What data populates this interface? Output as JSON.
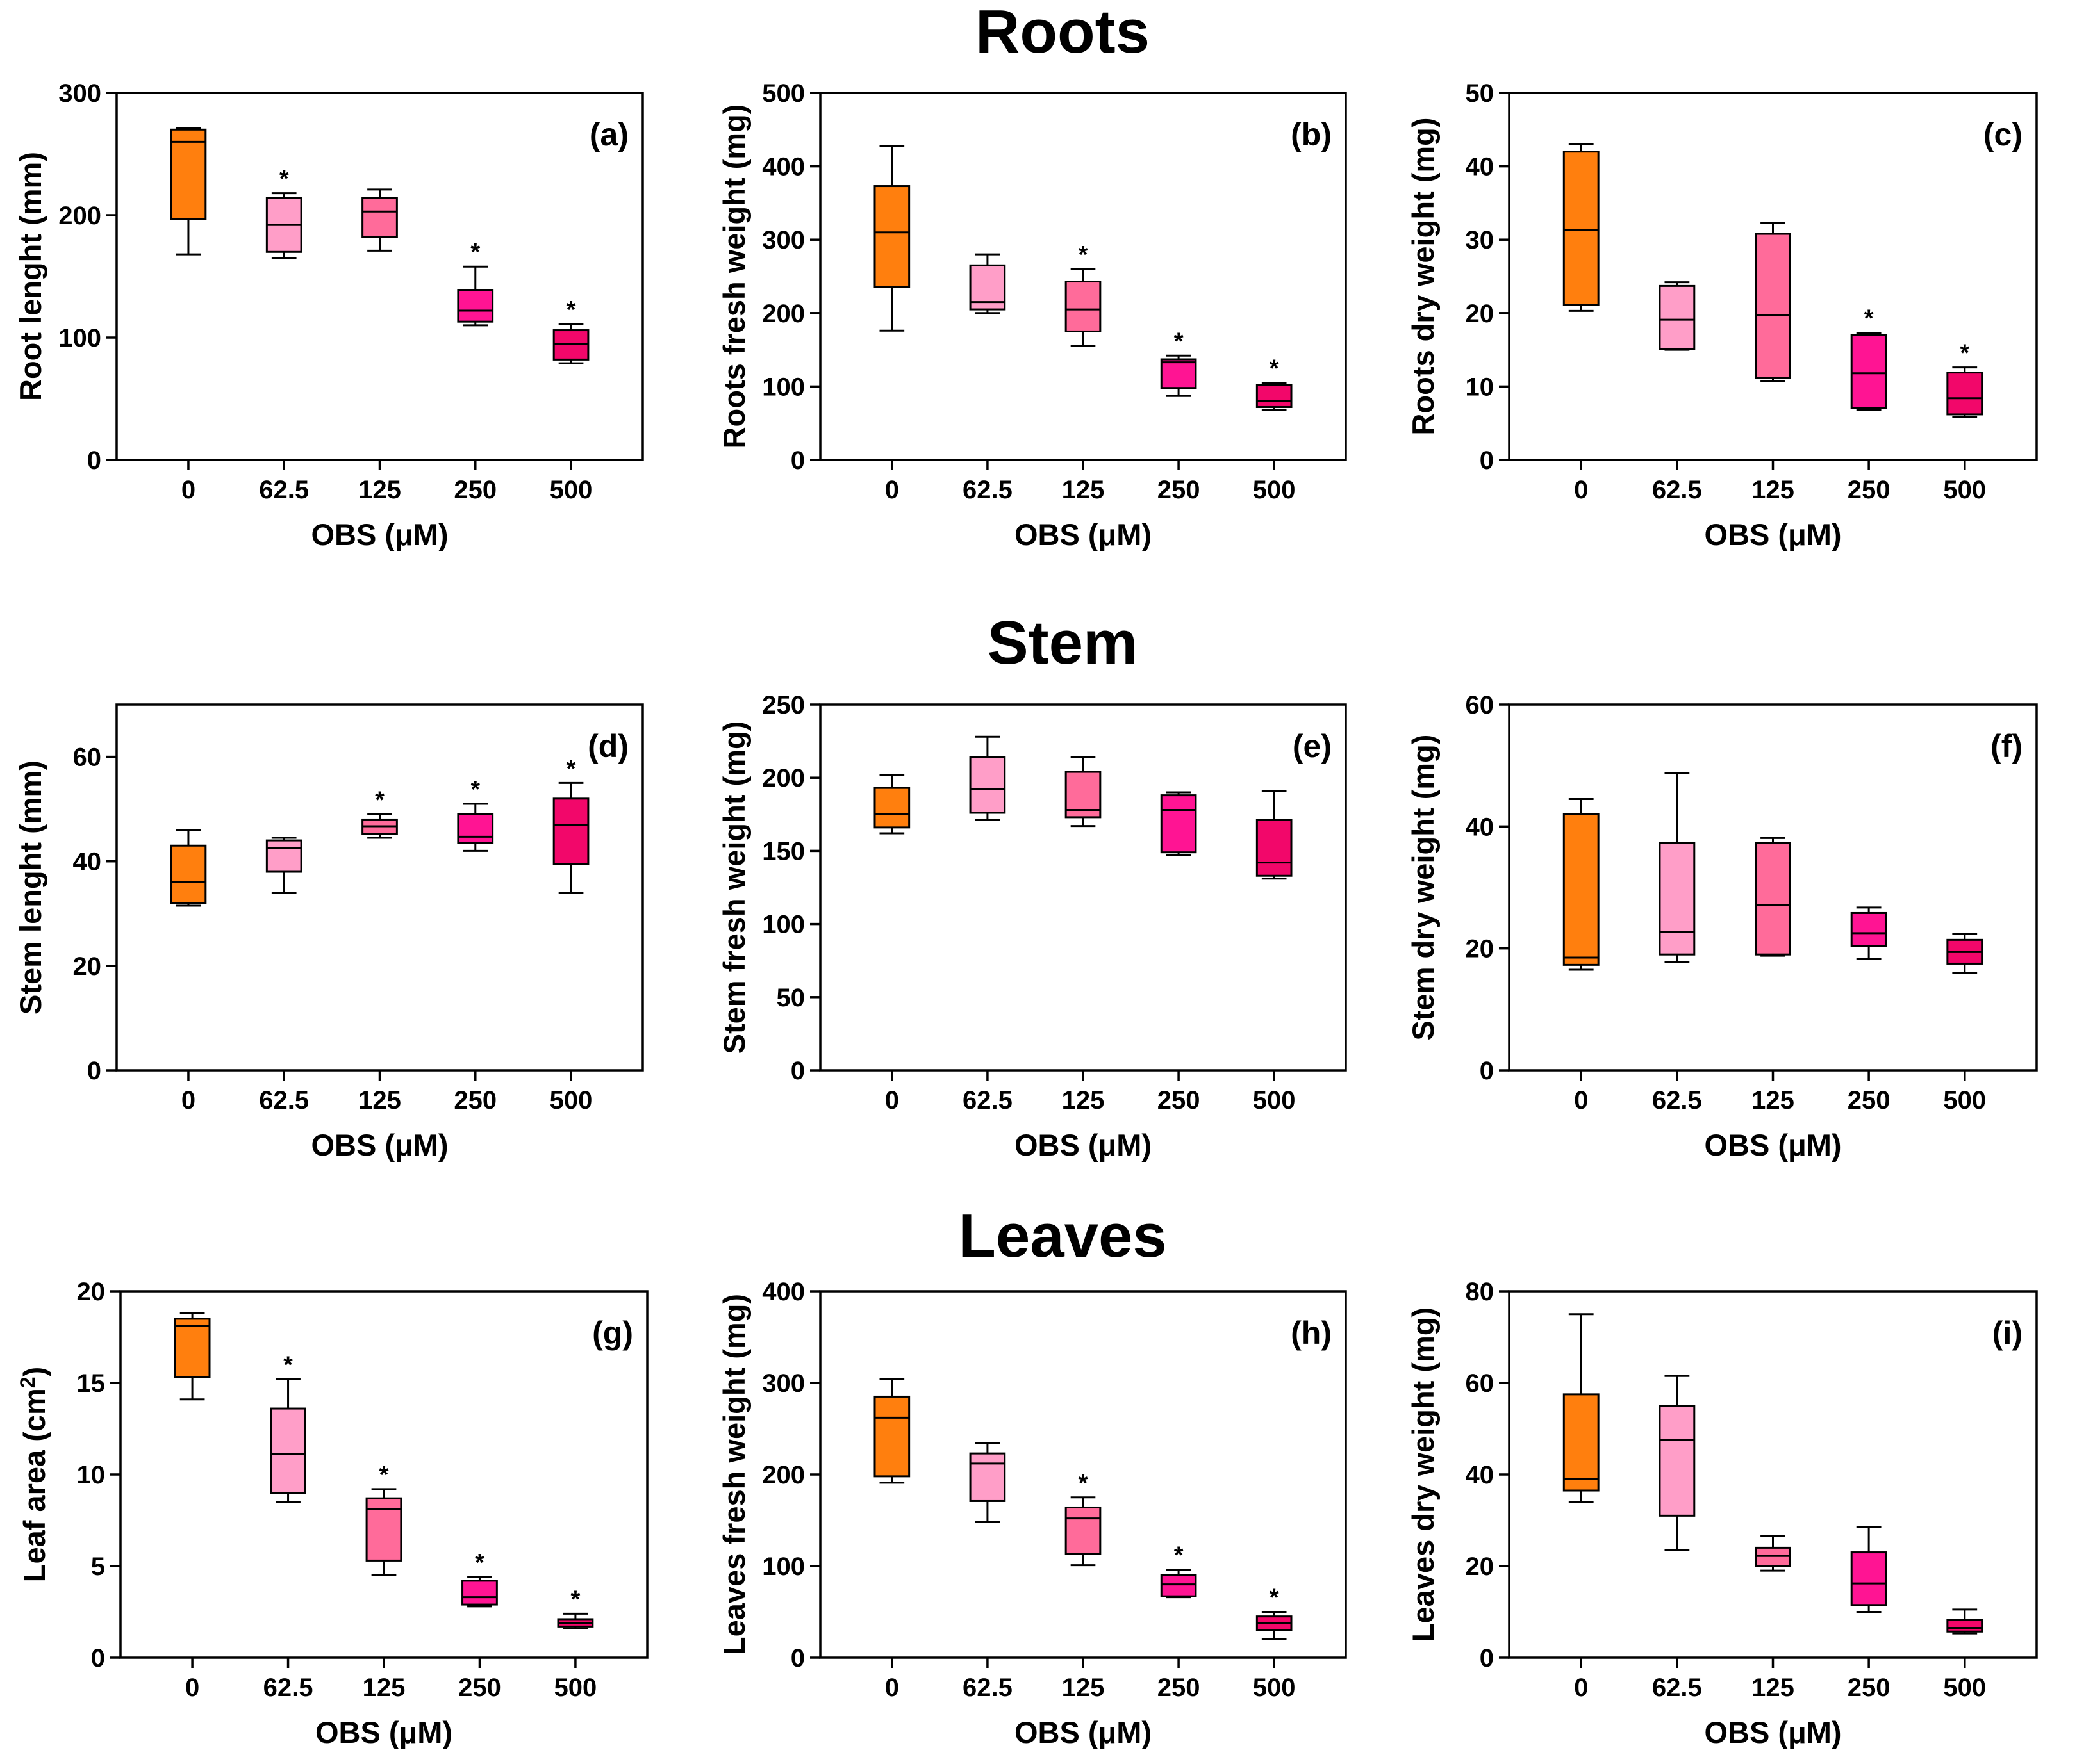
{
  "sections": [
    "Roots",
    "Stem",
    "Leaves"
  ],
  "colors": [
    "#FF7F0E",
    "#FF9EC8",
    "#FF6B9A",
    "#FF1493",
    "#F2076A"
  ],
  "chart_data": [
    {
      "panel": "(a)",
      "type": "box",
      "title": "",
      "xlabel": "OBS (μM)",
      "ylabel": "Root lenght (mm)",
      "ylabel_sup": "",
      "ylim": [
        0,
        300
      ],
      "yticks": [
        0,
        100,
        200,
        300
      ],
      "categories": [
        "0",
        "62.5",
        "125",
        "250",
        "500"
      ],
      "boxes": [
        {
          "min": 168,
          "q1": 197,
          "median": 260,
          "q3": 270,
          "max": 271,
          "sig": false
        },
        {
          "min": 165,
          "q1": 170,
          "median": 192,
          "q3": 214,
          "max": 218,
          "sig": true
        },
        {
          "min": 171,
          "q1": 182,
          "median": 203,
          "q3": 214,
          "max": 221,
          "sig": false
        },
        {
          "min": 110,
          "q1": 113,
          "median": 122,
          "q3": 139,
          "max": 158,
          "sig": true
        },
        {
          "min": 79,
          "q1": 82,
          "median": 95,
          "q3": 106,
          "max": 111,
          "sig": true
        }
      ]
    },
    {
      "panel": "(b)",
      "type": "box",
      "title": "",
      "xlabel": "OBS (μM)",
      "ylabel": "Roots fresh weight (mg)",
      "ylabel_sup": "",
      "ylim": [
        0,
        500
      ],
      "yticks": [
        0,
        100,
        200,
        300,
        400,
        500
      ],
      "categories": [
        "0",
        "62.5",
        "125",
        "250",
        "500"
      ],
      "boxes": [
        {
          "min": 176,
          "q1": 236,
          "median": 310,
          "q3": 373,
          "max": 428,
          "sig": false
        },
        {
          "min": 200,
          "q1": 205,
          "median": 215,
          "q3": 265,
          "max": 280,
          "sig": false
        },
        {
          "min": 155,
          "q1": 175,
          "median": 205,
          "q3": 243,
          "max": 260,
          "sig": true
        },
        {
          "min": 87,
          "q1": 98,
          "median": 133,
          "q3": 137,
          "max": 142,
          "sig": true
        },
        {
          "min": 68,
          "q1": 72,
          "median": 80,
          "q3": 102,
          "max": 105,
          "sig": true
        }
      ]
    },
    {
      "panel": "(c)",
      "type": "box",
      "title": "",
      "xlabel": "OBS (μM)",
      "ylabel": "Roots dry weight (mg)",
      "ylabel_sup": "",
      "ylim": [
        0,
        50
      ],
      "yticks": [
        0,
        10,
        20,
        30,
        40,
        50
      ],
      "categories": [
        "0",
        "62.5",
        "125",
        "250",
        "500"
      ],
      "boxes": [
        {
          "min": 20.3,
          "q1": 21.1,
          "median": 31.3,
          "q3": 42,
          "max": 43,
          "sig": false
        },
        {
          "min": 15,
          "q1": 15.1,
          "median": 19.1,
          "q3": 23.7,
          "max": 24.2,
          "sig": false
        },
        {
          "min": 10.7,
          "q1": 11.2,
          "median": 19.7,
          "q3": 30.8,
          "max": 32.3,
          "sig": false
        },
        {
          "min": 6.8,
          "q1": 7.1,
          "median": 11.8,
          "q3": 17,
          "max": 17.3,
          "sig": true
        },
        {
          "min": 5.8,
          "q1": 6.2,
          "median": 8.4,
          "q3": 11.9,
          "max": 12.6,
          "sig": true
        }
      ]
    },
    {
      "panel": "(d)",
      "type": "box",
      "title": "",
      "xlabel": "OBS (μM)",
      "ylabel": "Stem lenght (mm)",
      "ylabel_sup": "",
      "ylim": [
        0,
        70
      ],
      "yticks": [
        0,
        20,
        40,
        60
      ],
      "categories": [
        "0",
        "62.5",
        "125",
        "250",
        "500"
      ],
      "boxes": [
        {
          "min": 31.5,
          "q1": 32,
          "median": 36,
          "q3": 43,
          "max": 46,
          "sig": false
        },
        {
          "min": 34,
          "q1": 38,
          "median": 42.5,
          "q3": 44,
          "max": 44.5,
          "sig": false
        },
        {
          "min": 44.5,
          "q1": 45.2,
          "median": 46.7,
          "q3": 48,
          "max": 49,
          "sig": true
        },
        {
          "min": 42,
          "q1": 43.5,
          "median": 44.7,
          "q3": 49,
          "max": 51,
          "sig": true
        },
        {
          "min": 34,
          "q1": 39.5,
          "median": 47,
          "q3": 52,
          "max": 55,
          "sig": true
        }
      ]
    },
    {
      "panel": "(e)",
      "type": "box",
      "title": "",
      "xlabel": "OBS (μM)",
      "ylabel": "Stem fresh weight (mg)",
      "ylabel_sup": "",
      "ylim": [
        0,
        250
      ],
      "yticks": [
        0,
        50,
        100,
        150,
        200,
        250
      ],
      "categories": [
        "0",
        "62.5",
        "125",
        "250",
        "500"
      ],
      "boxes": [
        {
          "min": 162,
          "q1": 166,
          "median": 175,
          "q3": 193,
          "max": 202,
          "sig": false
        },
        {
          "min": 171,
          "q1": 176,
          "median": 192,
          "q3": 214,
          "max": 228,
          "sig": false
        },
        {
          "min": 167,
          "q1": 173,
          "median": 178,
          "q3": 204,
          "max": 214,
          "sig": false
        },
        {
          "min": 147,
          "q1": 149,
          "median": 178,
          "q3": 188,
          "max": 190,
          "sig": false
        },
        {
          "min": 131,
          "q1": 133,
          "median": 142,
          "q3": 171,
          "max": 191,
          "sig": false
        }
      ]
    },
    {
      "panel": "(f)",
      "type": "box",
      "title": "",
      "xlabel": "OBS (μM)",
      "ylabel": "Stem dry weight (mg)",
      "ylabel_sup": "",
      "ylim": [
        0,
        60
      ],
      "yticks": [
        0,
        20,
        40,
        60
      ],
      "categories": [
        "0",
        "62.5",
        "125",
        "250",
        "500"
      ],
      "boxes": [
        {
          "min": 16.5,
          "q1": 17.3,
          "median": 18.5,
          "q3": 42,
          "max": 44.5,
          "sig": false
        },
        {
          "min": 17.7,
          "q1": 19,
          "median": 22.7,
          "q3": 37.3,
          "max": 48.8,
          "sig": false
        },
        {
          "min": 18.8,
          "q1": 19,
          "median": 27.1,
          "q3": 37.3,
          "max": 38.1,
          "sig": false
        },
        {
          "min": 18.3,
          "q1": 20.4,
          "median": 22.5,
          "q3": 25.8,
          "max": 26.7,
          "sig": false
        },
        {
          "min": 16,
          "q1": 17.5,
          "median": 19.4,
          "q3": 21.4,
          "max": 22.4,
          "sig": false
        }
      ]
    },
    {
      "panel": "(g)",
      "type": "box",
      "title": "",
      "xlabel": "OBS (μM)",
      "ylabel": "Leaf area (cm",
      "ylabel_sup": "2",
      "ylim": [
        0,
        20
      ],
      "yticks": [
        0,
        5,
        10,
        15,
        20
      ],
      "categories": [
        "0",
        "62.5",
        "125",
        "250",
        "500"
      ],
      "boxes": [
        {
          "min": 14.1,
          "q1": 15.3,
          "median": 18.1,
          "q3": 18.5,
          "max": 18.8,
          "sig": false
        },
        {
          "min": 8.5,
          "q1": 9,
          "median": 11.1,
          "q3": 13.6,
          "max": 15.2,
          "sig": true
        },
        {
          "min": 4.5,
          "q1": 5.3,
          "median": 8.1,
          "q3": 8.7,
          "max": 9.2,
          "sig": true
        },
        {
          "min": 2.8,
          "q1": 2.9,
          "median": 3.3,
          "q3": 4.2,
          "max": 4.4,
          "sig": true
        },
        {
          "min": 1.6,
          "q1": 1.7,
          "median": 1.9,
          "q3": 2.1,
          "max": 2.4,
          "sig": true
        }
      ]
    },
    {
      "panel": "(h)",
      "type": "box",
      "title": "",
      "xlabel": "OBS (μM)",
      "ylabel": "Leaves fresh weight (mg)",
      "ylabel_sup": "",
      "ylim": [
        0,
        400
      ],
      "yticks": [
        0,
        100,
        200,
        300,
        400
      ],
      "categories": [
        "0",
        "62.5",
        "125",
        "250",
        "500"
      ],
      "boxes": [
        {
          "min": 191,
          "q1": 198,
          "median": 262,
          "q3": 285,
          "max": 304,
          "sig": false
        },
        {
          "min": 148,
          "q1": 171,
          "median": 212,
          "q3": 223,
          "max": 234,
          "sig": false
        },
        {
          "min": 101,
          "q1": 113,
          "median": 152,
          "q3": 164,
          "max": 175,
          "sig": true
        },
        {
          "min": 66,
          "q1": 67,
          "median": 80,
          "q3": 90,
          "max": 96,
          "sig": true
        },
        {
          "min": 20,
          "q1": 30,
          "median": 38,
          "q3": 45,
          "max": 50,
          "sig": true
        }
      ]
    },
    {
      "panel": "(i)",
      "type": "box",
      "title": "",
      "xlabel": "OBS (μM)",
      "ylabel": "Leaves dry weight (mg)",
      "ylabel_sup": "",
      "ylim": [
        0,
        80
      ],
      "yticks": [
        0,
        20,
        40,
        60,
        80
      ],
      "categories": [
        "0",
        "62.5",
        "125",
        "250",
        "500"
      ],
      "boxes": [
        {
          "min": 34,
          "q1": 36.5,
          "median": 39,
          "q3": 57.5,
          "max": 75,
          "sig": false
        },
        {
          "min": 23.5,
          "q1": 31,
          "median": 47.5,
          "q3": 55,
          "max": 61.5,
          "sig": false
        },
        {
          "min": 19,
          "q1": 20,
          "median": 22.2,
          "q3": 24,
          "max": 26.5,
          "sig": false
        },
        {
          "min": 10,
          "q1": 11.5,
          "median": 16.2,
          "q3": 23,
          "max": 28.5,
          "sig": false
        },
        {
          "min": 5.3,
          "q1": 5.7,
          "median": 6.5,
          "q3": 8.2,
          "max": 10.5,
          "sig": false
        }
      ]
    }
  ]
}
